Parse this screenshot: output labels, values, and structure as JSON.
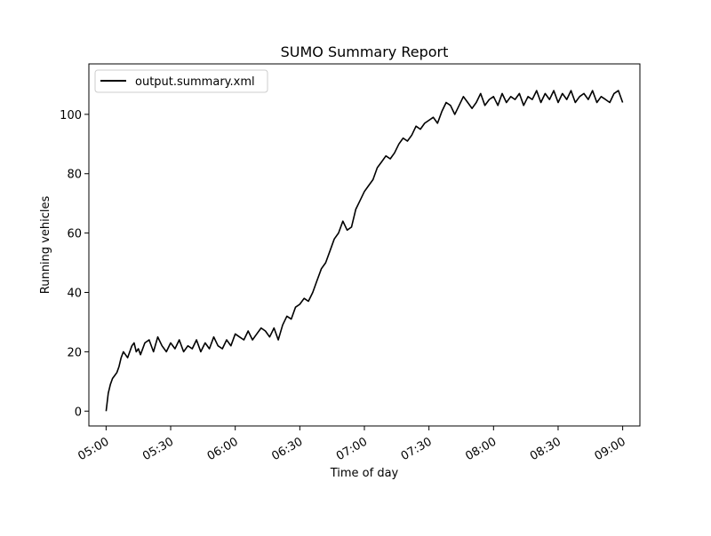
{
  "chart_data": {
    "type": "line",
    "title": "SUMO Summary Report",
    "xlabel": "Time of day",
    "ylabel": "Running vehicles",
    "x_unit": "HH:MM",
    "xlim": [
      "05:00",
      "09:00"
    ],
    "ylim": [
      -5,
      117
    ],
    "x_ticks": [
      "05:00",
      "05:30",
      "06:00",
      "06:30",
      "07:00",
      "07:30",
      "08:00",
      "08:30",
      "09:00"
    ],
    "y_ticks": [
      0,
      20,
      40,
      60,
      80,
      100
    ],
    "grid": false,
    "legend": {
      "position": "top-left"
    },
    "series": [
      {
        "name": "output.summary.xml",
        "color": "#000000",
        "points": [
          [
            "05:00",
            0
          ],
          [
            "05:01",
            6
          ],
          [
            "05:02",
            9
          ],
          [
            "05:03",
            11
          ],
          [
            "05:04",
            12
          ],
          [
            "05:05",
            13
          ],
          [
            "05:06",
            15
          ],
          [
            "05:07",
            18
          ],
          [
            "05:08",
            20
          ],
          [
            "05:09",
            19
          ],
          [
            "05:10",
            18
          ],
          [
            "05:11",
            20
          ],
          [
            "05:12",
            22
          ],
          [
            "05:13",
            23
          ],
          [
            "05:14",
            20
          ],
          [
            "05:15",
            21
          ],
          [
            "05:16",
            19
          ],
          [
            "05:18",
            23
          ],
          [
            "05:20",
            24
          ],
          [
            "05:22",
            20
          ],
          [
            "05:24",
            25
          ],
          [
            "05:26",
            22
          ],
          [
            "05:28",
            20
          ],
          [
            "05:30",
            23
          ],
          [
            "05:32",
            21
          ],
          [
            "05:34",
            24
          ],
          [
            "05:36",
            20
          ],
          [
            "05:38",
            22
          ],
          [
            "05:40",
            21
          ],
          [
            "05:42",
            24
          ],
          [
            "05:44",
            20
          ],
          [
            "05:46",
            23
          ],
          [
            "05:48",
            21
          ],
          [
            "05:50",
            25
          ],
          [
            "05:52",
            22
          ],
          [
            "05:54",
            21
          ],
          [
            "05:56",
            24
          ],
          [
            "05:58",
            22
          ],
          [
            "06:00",
            26
          ],
          [
            "06:02",
            25
          ],
          [
            "06:04",
            24
          ],
          [
            "06:06",
            27
          ],
          [
            "06:08",
            24
          ],
          [
            "06:10",
            26
          ],
          [
            "06:12",
            28
          ],
          [
            "06:14",
            27
          ],
          [
            "06:16",
            25
          ],
          [
            "06:18",
            28
          ],
          [
            "06:20",
            24
          ],
          [
            "06:22",
            29
          ],
          [
            "06:24",
            32
          ],
          [
            "06:26",
            31
          ],
          [
            "06:28",
            35
          ],
          [
            "06:30",
            36
          ],
          [
            "06:32",
            38
          ],
          [
            "06:34",
            37
          ],
          [
            "06:36",
            40
          ],
          [
            "06:38",
            44
          ],
          [
            "06:40",
            48
          ],
          [
            "06:42",
            50
          ],
          [
            "06:44",
            54
          ],
          [
            "06:46",
            58
          ],
          [
            "06:48",
            60
          ],
          [
            "06:50",
            64
          ],
          [
            "06:52",
            61
          ],
          [
            "06:54",
            62
          ],
          [
            "06:56",
            68
          ],
          [
            "06:58",
            71
          ],
          [
            "07:00",
            74
          ],
          [
            "07:02",
            76
          ],
          [
            "07:04",
            78
          ],
          [
            "07:06",
            82
          ],
          [
            "07:08",
            84
          ],
          [
            "07:10",
            86
          ],
          [
            "07:12",
            85
          ],
          [
            "07:14",
            87
          ],
          [
            "07:16",
            90
          ],
          [
            "07:18",
            92
          ],
          [
            "07:20",
            91
          ],
          [
            "07:22",
            93
          ],
          [
            "07:24",
            96
          ],
          [
            "07:26",
            95
          ],
          [
            "07:28",
            97
          ],
          [
            "07:30",
            98
          ],
          [
            "07:32",
            99
          ],
          [
            "07:34",
            97
          ],
          [
            "07:36",
            101
          ],
          [
            "07:38",
            104
          ],
          [
            "07:40",
            103
          ],
          [
            "07:42",
            100
          ],
          [
            "07:44",
            103
          ],
          [
            "07:46",
            106
          ],
          [
            "07:48",
            104
          ],
          [
            "07:50",
            102
          ],
          [
            "07:52",
            104
          ],
          [
            "07:54",
            107
          ],
          [
            "07:56",
            103
          ],
          [
            "07:58",
            105
          ],
          [
            "08:00",
            106
          ],
          [
            "08:02",
            103
          ],
          [
            "08:04",
            107
          ],
          [
            "08:06",
            104
          ],
          [
            "08:08",
            106
          ],
          [
            "08:10",
            105
          ],
          [
            "08:12",
            107
          ],
          [
            "08:14",
            103
          ],
          [
            "08:16",
            106
          ],
          [
            "08:18",
            105
          ],
          [
            "08:20",
            108
          ],
          [
            "08:22",
            104
          ],
          [
            "08:24",
            107
          ],
          [
            "08:26",
            105
          ],
          [
            "08:28",
            108
          ],
          [
            "08:30",
            104
          ],
          [
            "08:32",
            107
          ],
          [
            "08:34",
            105
          ],
          [
            "08:36",
            108
          ],
          [
            "08:38",
            104
          ],
          [
            "08:40",
            106
          ],
          [
            "08:42",
            107
          ],
          [
            "08:44",
            105
          ],
          [
            "08:46",
            108
          ],
          [
            "08:48",
            104
          ],
          [
            "08:50",
            106
          ],
          [
            "08:52",
            105
          ],
          [
            "08:54",
            104
          ],
          [
            "08:56",
            107
          ],
          [
            "08:58",
            108
          ],
          [
            "09:00",
            104
          ]
        ]
      }
    ]
  }
}
